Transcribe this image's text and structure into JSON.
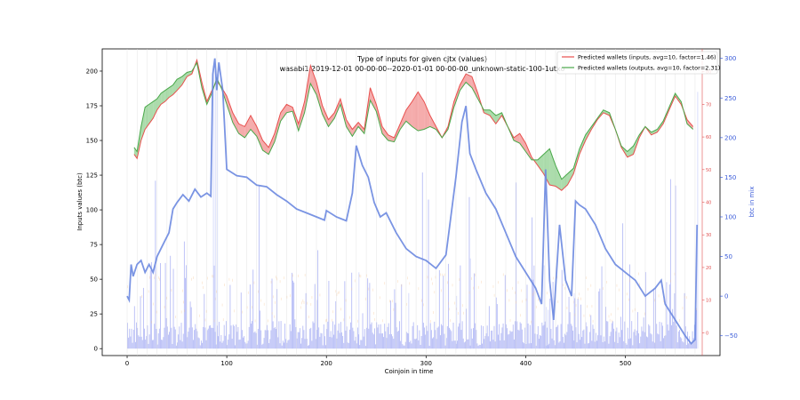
{
  "chart_data": {
    "type": "line",
    "title": "Type of inputs for given cjtx (values)",
    "subtitle": "wasabi1 2019-12-01 00-00-00--2020-01-01 00-00-00_unknown-static-100-1utxo",
    "xlabel": "Coinjoin in time",
    "ylabel": "Inputs values (btc)",
    "y2label": "btc in mix",
    "xlim": [
      -25,
      595
    ],
    "ylim": [
      -5,
      216
    ],
    "y2lim": [
      -75,
      312
    ],
    "y3lim": [
      -7,
      87
    ],
    "xticks": [
      "0",
      "100",
      "200",
      "300",
      "400",
      "500"
    ],
    "yticks": [
      "0",
      "25",
      "50",
      "75",
      "100",
      "125",
      "150",
      "175",
      "200"
    ],
    "y2ticks": [
      "−50",
      "0",
      "50",
      "100",
      "150",
      "200",
      "250",
      "300"
    ],
    "y3ticks": [
      "0",
      "10",
      "20",
      "30",
      "40",
      "50",
      "60",
      "70",
      "80"
    ],
    "legend_position": "top-right",
    "series": [
      {
        "name": "Predicted wallets (inputs, avg=10, factor=1.46)",
        "color": "#e8504e",
        "axis": "y",
        "x": [
          7,
          10,
          14,
          18,
          22,
          26,
          30,
          34,
          38,
          42,
          46,
          50,
          55,
          60,
          65,
          70,
          75,
          80,
          85,
          90,
          95,
          100,
          106,
          112,
          118,
          124,
          130,
          136,
          142,
          148,
          154,
          160,
          166,
          172,
          178,
          184,
          190,
          196,
          202,
          208,
          214,
          220,
          226,
          232,
          238,
          244,
          250,
          256,
          262,
          268,
          274,
          280,
          286,
          292,
          298,
          304,
          310,
          316,
          322,
          328,
          334,
          340,
          346,
          352,
          358,
          364,
          370,
          376,
          382,
          388,
          394,
          400,
          406,
          412,
          418,
          424,
          430,
          436,
          442,
          448,
          454,
          460,
          466,
          472,
          478,
          484,
          490,
          496,
          502,
          508,
          514,
          520,
          526,
          532,
          538,
          544,
          550,
          556,
          562,
          568
        ],
        "values": [
          140,
          137,
          150,
          158,
          162,
          166,
          172,
          176,
          178,
          181,
          183,
          186,
          190,
          196,
          198,
          208,
          192,
          178,
          186,
          193,
          188,
          182,
          170,
          162,
          160,
          168,
          160,
          150,
          145,
          155,
          170,
          176,
          174,
          162,
          178,
          204,
          192,
          175,
          165,
          170,
          180,
          165,
          158,
          163,
          158,
          188,
          176,
          160,
          154,
          152,
          162,
          172,
          178,
          185,
          178,
          168,
          160,
          152,
          160,
          178,
          190,
          198,
          196,
          184,
          170,
          168,
          162,
          168,
          160,
          152,
          155,
          148,
          138,
          132,
          126,
          118,
          117,
          114,
          118,
          126,
          140,
          150,
          158,
          165,
          170,
          168,
          158,
          145,
          138,
          140,
          152,
          160,
          154,
          156,
          162,
          172,
          182,
          176,
          165,
          160
        ]
      },
      {
        "name": "Predicted wallets (outputs, avg=10, factor=2.31)",
        "color": "#4aa84a",
        "axis": "y",
        "x": [
          7,
          10,
          14,
          18,
          22,
          26,
          30,
          34,
          38,
          42,
          46,
          50,
          55,
          60,
          65,
          70,
          75,
          80,
          85,
          90,
          95,
          100,
          106,
          112,
          118,
          124,
          130,
          136,
          142,
          148,
          154,
          160,
          166,
          172,
          178,
          184,
          190,
          196,
          202,
          208,
          214,
          220,
          226,
          232,
          238,
          244,
          250,
          256,
          262,
          268,
          274,
          280,
          286,
          292,
          298,
          304,
          310,
          316,
          322,
          328,
          334,
          340,
          346,
          352,
          358,
          364,
          370,
          376,
          382,
          388,
          394,
          400,
          406,
          412,
          418,
          424,
          430,
          436,
          442,
          448,
          454,
          460,
          466,
          472,
          478,
          484,
          490,
          496,
          502,
          508,
          514,
          520,
          526,
          532,
          538,
          544,
          550,
          556,
          562,
          568
        ],
        "values": [
          145,
          142,
          160,
          174,
          176,
          178,
          180,
          184,
          186,
          188,
          190,
          194,
          196,
          199,
          200,
          206,
          188,
          176,
          184,
          195,
          187,
          176,
          163,
          155,
          152,
          158,
          153,
          143,
          140,
          149,
          164,
          170,
          171,
          157,
          170,
          191,
          183,
          169,
          160,
          166,
          176,
          160,
          153,
          160,
          155,
          179,
          171,
          155,
          150,
          149,
          158,
          164,
          160,
          157,
          158,
          160,
          158,
          152,
          158,
          174,
          186,
          192,
          188,
          180,
          172,
          172,
          168,
          170,
          160,
          150,
          148,
          142,
          136,
          136,
          140,
          144,
          132,
          122,
          126,
          130,
          144,
          154,
          160,
          166,
          172,
          170,
          158,
          146,
          142,
          146,
          154,
          160,
          156,
          158,
          164,
          174,
          184,
          178,
          162,
          158
        ]
      },
      {
        "name": "btc in mix",
        "color": "#6b88e0",
        "axis": "y2",
        "x": [
          0,
          2,
          4,
          6,
          10,
          14,
          18,
          22,
          26,
          30,
          34,
          38,
          42,
          46,
          50,
          56,
          62,
          68,
          74,
          80,
          84,
          86,
          88,
          90,
          92,
          96,
          100,
          110,
          120,
          130,
          140,
          150,
          160,
          170,
          180,
          190,
          198,
          200,
          210,
          220,
          226,
          230,
          236,
          242,
          248,
          254,
          260,
          270,
          280,
          290,
          300,
          310,
          320,
          330,
          336,
          340,
          344,
          350,
          360,
          370,
          380,
          390,
          400,
          410,
          416,
          420,
          424,
          428,
          434,
          440,
          446,
          450,
          454,
          460,
          470,
          480,
          490,
          500,
          510,
          520,
          530,
          536,
          540,
          550,
          560,
          566,
          570,
          572
        ],
        "values": [
          0,
          -5,
          40,
          25,
          40,
          45,
          30,
          40,
          30,
          50,
          60,
          70,
          80,
          110,
          118,
          128,
          120,
          135,
          125,
          130,
          126,
          280,
          300,
          260,
          295,
          260,
          160,
          152,
          150,
          140,
          138,
          128,
          120,
          110,
          105,
          100,
          96,
          108,
          100,
          95,
          130,
          190,
          165,
          150,
          118,
          100,
          105,
          80,
          60,
          50,
          45,
          35,
          52,
          150,
          220,
          240,
          180,
          160,
          130,
          110,
          80,
          50,
          30,
          10,
          -10,
          160,
          20,
          -30,
          90,
          20,
          0,
          120,
          115,
          110,
          90,
          60,
          40,
          30,
          20,
          0,
          10,
          20,
          -10,
          -30,
          -50,
          -60,
          -55,
          90
        ]
      }
    ],
    "annotations": []
  },
  "legend": [
    {
      "label": "Predicted wallets (inputs, avg=10, factor=1.46)",
      "color": "#e8504e"
    },
    {
      "label": "Predicted wallets (outputs, avg=10, factor=2.31)",
      "color": "#4aa84a"
    }
  ]
}
